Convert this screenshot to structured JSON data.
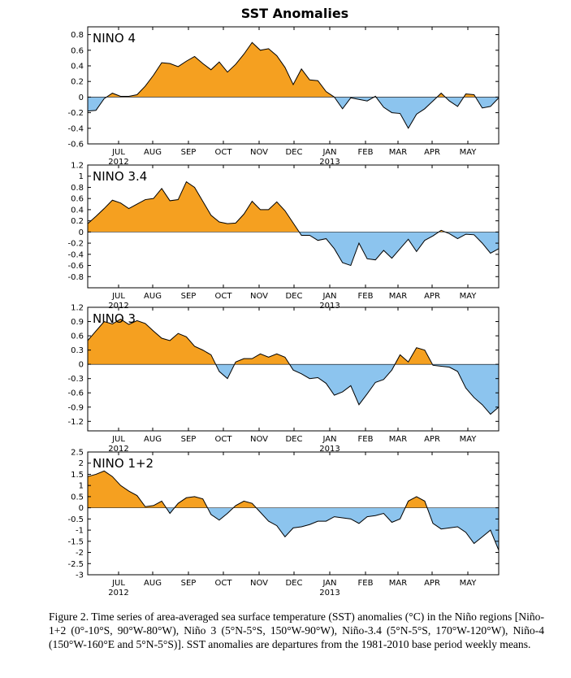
{
  "title": "SST Anomalies",
  "caption": "Figure 2. Time series of area-averaged sea surface temperature (SST) anomalies (°C) in the Niño regions [Niño-1+2 (0°-10°S, 90°W-80°W), Niño 3 (5°N-5°S, 150°W-90°W), Niño-3.4 (5°N-5°S, 170°W-120°W), Niño-4 (150°W-160°E and 5°N-5°S)]. SST anomalies are departures from the 1981-2010 base period weekly means.",
  "colors": {
    "positive": "#f5a020",
    "negative": "#8cc4ee",
    "line": "#000000"
  },
  "chart_data": [
    {
      "type": "area",
      "label": "NINO 4",
      "months": [
        "JUL",
        "AUG",
        "SEP",
        "OCT",
        "NOV",
        "DEC",
        "JAN",
        "FEB",
        "MAR",
        "APR",
        "MAY"
      ],
      "years": [
        "2012",
        "2013"
      ],
      "yticks": [
        "0.8",
        "0.6",
        "0.4",
        "0.2",
        "0",
        "-0.2",
        "-0.4",
        "-0.6"
      ],
      "ylim": [
        -0.6,
        0.9
      ],
      "values": [
        -0.18,
        -0.17,
        -0.02,
        0.05,
        0.01,
        0.01,
        0.03,
        0.14,
        0.28,
        0.44,
        0.43,
        0.39,
        0.46,
        0.52,
        0.43,
        0.35,
        0.45,
        0.32,
        0.42,
        0.55,
        0.7,
        0.6,
        0.62,
        0.53,
        0.38,
        0.16,
        0.36,
        0.22,
        0.21,
        0.07,
        0,
        -0.15,
        -0.01,
        -0.03,
        -0.05,
        0.01,
        -0.13,
        -0.2,
        -0.21,
        -0.4,
        -0.22,
        -0.15,
        -0.05,
        0.05,
        -0.05,
        -0.12,
        0.04,
        0.03,
        -0.14,
        -0.12,
        -0.01
      ]
    },
    {
      "type": "area",
      "label": "NINO 3.4",
      "months": [
        "JUL",
        "AUG",
        "SEP",
        "OCT",
        "NOV",
        "DEC",
        "JAN",
        "FEB",
        "MAR",
        "APR",
        "MAY"
      ],
      "years": [
        "2012",
        "2013"
      ],
      "yticks": [
        "1.2",
        "1",
        "0.8",
        "0.6",
        "0.4",
        "0.2",
        "0",
        "-0.2",
        "-0.4",
        "-0.6",
        "-0.8"
      ],
      "ylim": [
        -1.0,
        1.2
      ],
      "values": [
        0.15,
        0.28,
        0.42,
        0.57,
        0.52,
        0.42,
        0.5,
        0.58,
        0.6,
        0.78,
        0.56,
        0.58,
        0.9,
        0.8,
        0.55,
        0.3,
        0.18,
        0.15,
        0.16,
        0.32,
        0.55,
        0.4,
        0.4,
        0.54,
        0.38,
        0.16,
        -0.06,
        -0.06,
        -0.15,
        -0.12,
        -0.3,
        -0.55,
        -0.6,
        -0.2,
        -0.48,
        -0.5,
        -0.33,
        -0.47,
        -0.3,
        -0.13,
        -0.35,
        -0.15,
        -0.07,
        0.03,
        -0.03,
        -0.12,
        -0.04,
        -0.05,
        -0.2,
        -0.38,
        -0.3
      ]
    },
    {
      "type": "area",
      "label": "NINO 3",
      "months": [
        "JUL",
        "AUG",
        "SEP",
        "OCT",
        "NOV",
        "DEC",
        "JAN",
        "FEB",
        "MAR",
        "APR",
        "MAY"
      ],
      "years": [
        "2012",
        "2013"
      ],
      "yticks": [
        "1.2",
        "0.9",
        "0.6",
        "0.3",
        "0",
        "-0.3",
        "-0.6",
        "-0.9",
        "-1.2"
      ],
      "ylim": [
        -1.4,
        1.2
      ],
      "values": [
        0.5,
        0.7,
        0.9,
        0.85,
        0.95,
        0.84,
        0.92,
        0.86,
        0.7,
        0.55,
        0.5,
        0.65,
        0.58,
        0.38,
        0.3,
        0.2,
        -0.15,
        -0.3,
        0.05,
        0.12,
        0.12,
        0.22,
        0.15,
        0.22,
        0.15,
        -0.12,
        -0.2,
        -0.3,
        -0.28,
        -0.4,
        -0.65,
        -0.58,
        -0.45,
        -0.85,
        -0.62,
        -0.38,
        -0.32,
        -0.12,
        0.2,
        0.05,
        0.35,
        0.3,
        -0.02,
        -0.04,
        -0.06,
        -0.15,
        -0.5,
        -0.7,
        -0.85,
        -1.05,
        -0.9
      ]
    },
    {
      "type": "area",
      "label": "NINO 1+2",
      "months": [
        "JUL",
        "AUG",
        "SEP",
        "OCT",
        "NOV",
        "DEC",
        "JAN",
        "FEB",
        "MAR",
        "APR",
        "MAY"
      ],
      "years": [
        "2012",
        "2013"
      ],
      "yticks": [
        "2.5",
        "2",
        "1.5",
        "1",
        "0.5",
        "0",
        "-0.5",
        "-1",
        "-1.5",
        "-2",
        "-2.5",
        "-3"
      ],
      "ylim": [
        -3.0,
        2.5
      ],
      "values": [
        1.4,
        1.5,
        1.65,
        1.4,
        1.0,
        0.75,
        0.55,
        0.05,
        0.1,
        0.3,
        -0.25,
        0.2,
        0.45,
        0.5,
        0.4,
        -0.3,
        -0.55,
        -0.25,
        0.1,
        0.3,
        0.2,
        -0.2,
        -0.6,
        -0.8,
        -1.3,
        -0.9,
        -0.85,
        -0.75,
        -0.6,
        -0.6,
        -0.4,
        -0.45,
        -0.5,
        -0.7,
        -0.4,
        -0.35,
        -0.25,
        -0.65,
        -0.5,
        0.3,
        0.5,
        0.3,
        -0.7,
        -0.95,
        -0.9,
        -0.85,
        -1.1,
        -1.6,
        -1.3,
        -1.0,
        -1.9
      ]
    }
  ]
}
